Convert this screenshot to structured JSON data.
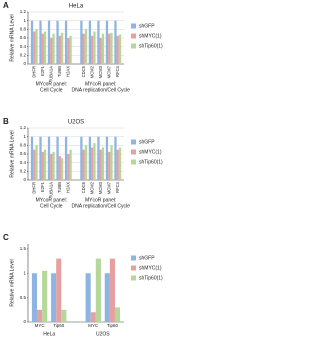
{
  "chart_data": [
    {
      "type": "bar",
      "panel": "A",
      "title": "HeLa",
      "y_label": "Relative mRNA Level",
      "groups": [
        [
          "MYcoR panel:",
          "Cell Cycle"
        ],
        [
          "MYcoR panel:",
          "DNA replication/Cell Cycle"
        ]
      ],
      "categories": [
        "DHFR",
        "E2F1",
        "TUBA1A",
        "TUBB",
        "H2AX",
        "CDC6",
        "MCM2",
        "MCM3",
        "MCM7",
        "RFC4"
      ],
      "ylim": [
        0,
        1.2
      ],
      "yticks": [
        0,
        0.2,
        0.4,
        0.6,
        0.8,
        1,
        1.2
      ],
      "grid": true,
      "series": [
        {
          "name": "shGFP",
          "color": "#8db4e2",
          "values": [
            1,
            1,
            1,
            1,
            1,
            1,
            1,
            1,
            1,
            1
          ]
        },
        {
          "name": "shMYC(1)",
          "color": "#e6a0a0",
          "values": [
            0.75,
            0.7,
            0.6,
            0.65,
            0.6,
            0.7,
            0.65,
            0.6,
            0.7,
            0.65
          ]
        },
        {
          "name": "shTip60(1)",
          "color": "#b5d89a",
          "values": [
            0.8,
            0.75,
            0.7,
            0.72,
            0.65,
            0.8,
            0.75,
            0.7,
            0.72,
            0.68
          ]
        }
      ]
    },
    {
      "type": "bar",
      "panel": "B",
      "title": "U2OS",
      "y_label": "Relative mRNA Level",
      "groups": [
        [
          "MYcoR panel:",
          "Cell Cycle"
        ],
        [
          "MYcoR panel:",
          "DNA replication/Cell Cycle"
        ]
      ],
      "categories": [
        "DHFR",
        "E2F1",
        "TUBA1A",
        "TUBB",
        "H2AX",
        "CDC6",
        "MCM2",
        "MCM3",
        "MCM7",
        "RFC4"
      ],
      "ylim": [
        0,
        1.2
      ],
      "yticks": [
        0,
        0.2,
        0.4,
        0.6,
        0.8,
        1,
        1.2
      ],
      "grid": true,
      "series": [
        {
          "name": "shGFP",
          "color": "#8db4e2",
          "values": [
            1,
            1,
            1,
            1,
            1,
            1,
            1,
            1,
            1,
            1
          ]
        },
        {
          "name": "shMYC(1)",
          "color": "#e6a0a0",
          "values": [
            0.7,
            0.65,
            0.6,
            0.55,
            0.6,
            0.7,
            0.75,
            0.7,
            0.65,
            0.7
          ]
        },
        {
          "name": "shTip60(1)",
          "color": "#b5d89a",
          "values": [
            0.8,
            0.7,
            0.65,
            0.5,
            0.7,
            0.8,
            0.85,
            0.75,
            0.8,
            0.75
          ]
        }
      ]
    },
    {
      "type": "bar",
      "panel": "C",
      "y_label": "Relative mRNA Level",
      "groups": [
        [
          "HeLa"
        ],
        [
          "U2OS"
        ]
      ],
      "categories": [
        "MYC",
        "Tip60",
        "MYC",
        "Tip60"
      ],
      "ylim": [
        0,
        1.6
      ],
      "yticks": [
        0,
        0.5,
        1,
        1.5
      ],
      "grid": false,
      "series": [
        {
          "name": "shGFP",
          "color": "#8db4e2",
          "values": [
            1,
            1,
            1,
            1
          ]
        },
        {
          "name": "shMYC(1)",
          "color": "#e6a0a0",
          "values": [
            0.25,
            1.3,
            0.2,
            1.3
          ]
        },
        {
          "name": "shTip60(1)",
          "color": "#b5d89a",
          "values": [
            1.05,
            0.25,
            1.3,
            0.3
          ]
        }
      ]
    }
  ]
}
